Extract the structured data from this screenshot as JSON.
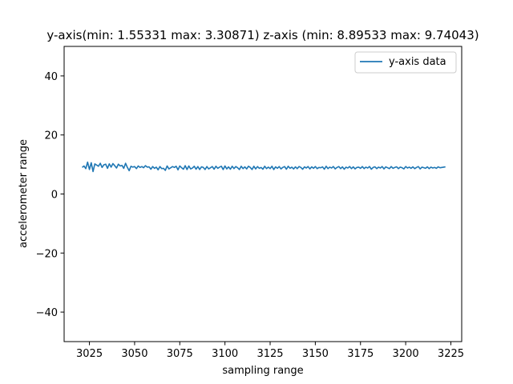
{
  "chart_data": {
    "type": "line",
    "title": "y-axis(min: 1.55331  max: 3.30871) z-axis (min: 8.89533 max: 9.74043)",
    "xlabel": "sampling range",
    "ylabel": "accelerometer range",
    "xlim": [
      3011,
      3231
    ],
    "ylim": [
      -50,
      50
    ],
    "xticks": [
      3025,
      3050,
      3075,
      3100,
      3125,
      3150,
      3175,
      3200,
      3225
    ],
    "yticks": [
      -40,
      -20,
      0,
      20,
      40
    ],
    "ytick_labels": [
      "−40",
      "−20",
      "0",
      "20",
      "40"
    ],
    "grid": false,
    "legend_position": "top-right",
    "series": [
      {
        "name": "y-axis data",
        "color": "#1f77b4",
        "x_start": 3021,
        "x_step": 1,
        "values": [
          9.0,
          9.5,
          8.6,
          10.8,
          8.3,
          10.6,
          7.6,
          10.2,
          9.8,
          9.4,
          10.4,
          9.0,
          9.9,
          10.1,
          8.7,
          10.2,
          9.1,
          10.3,
          9.6,
          8.8,
          10.1,
          9.5,
          9.7,
          8.7,
          10.4,
          9.0,
          7.9,
          9.4,
          9.1,
          9.3,
          8.6,
          9.5,
          9.0,
          9.3,
          8.9,
          9.6,
          9.1,
          9.2,
          8.4,
          9.3,
          8.7,
          9.1,
          8.2,
          9.3,
          8.6,
          8.7,
          8.0,
          9.5,
          8.5,
          8.9,
          9.3,
          9.0,
          9.4,
          8.2,
          9.5,
          8.9,
          8.4,
          9.6,
          8.3,
          9.5,
          8.5,
          8.8,
          9.4,
          8.4,
          9.3,
          8.3,
          9.2,
          9.0,
          8.3,
          9.3,
          8.5,
          8.9,
          9.3,
          8.4,
          9.4,
          8.7,
          9.1,
          9.4,
          8.3,
          9.5,
          8.5,
          9.2,
          8.4,
          9.4,
          8.6,
          9.3,
          8.9,
          8.3,
          9.4,
          8.6,
          9.2,
          8.5,
          9.4,
          9.0,
          8.3,
          9.4,
          8.5,
          9.3,
          8.7,
          9.0,
          8.4,
          9.4,
          8.6,
          9.1,
          8.6,
          9.4,
          8.3,
          9.2,
          8.7,
          9.3,
          8.5,
          9.0,
          9.3,
          8.4,
          9.4,
          8.7,
          9.1,
          8.5,
          9.2,
          8.6,
          9.3,
          9.0,
          8.4,
          9.2,
          8.8,
          9.3,
          8.5,
          9.2,
          8.7,
          9.3,
          8.6,
          9.0,
          8.9,
          9.2,
          8.4,
          9.4,
          8.6,
          9.1,
          8.8,
          9.3,
          8.5,
          9.0,
          9.3,
          8.6,
          9.2,
          8.4,
          9.1,
          8.8,
          9.3,
          8.6,
          9.2,
          8.5,
          9.0,
          9.1,
          8.7,
          9.3,
          8.6,
          9.1,
          8.8,
          9.3,
          8.4,
          9.0,
          9.2,
          8.6,
          9.1,
          8.8,
          9.3,
          8.5,
          9.2,
          8.9,
          8.6,
          9.3,
          8.7,
          9.0,
          9.2,
          8.6,
          9.1,
          8.9,
          8.5,
          9.3,
          8.8,
          9.1,
          8.7,
          9.2,
          8.6,
          9.0,
          9.3,
          8.5,
          9.1,
          8.9,
          8.7,
          9.2,
          8.6,
          9.1,
          8.8,
          9.0,
          8.7,
          9.2,
          8.9,
          9.0,
          9.1,
          9.2
        ]
      }
    ]
  }
}
